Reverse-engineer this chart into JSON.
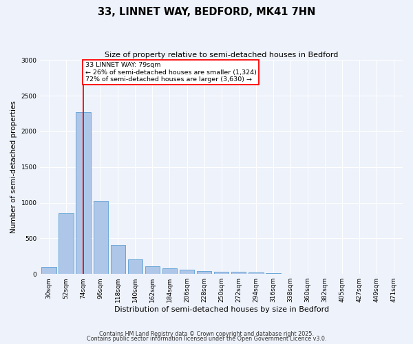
{
  "title": "33, LINNET WAY, BEDFORD, MK41 7HN",
  "subtitle": "Size of property relative to semi-detached houses in Bedford",
  "xlabel": "Distribution of semi-detached houses by size in Bedford",
  "ylabel": "Number of semi-detached properties",
  "bar_labels": [
    "30sqm",
    "52sqm",
    "74sqm",
    "96sqm",
    "118sqm",
    "140sqm",
    "162sqm",
    "184sqm",
    "206sqm",
    "228sqm",
    "250sqm",
    "272sqm",
    "294sqm",
    "316sqm",
    "338sqm",
    "360sqm",
    "382sqm",
    "405sqm",
    "427sqm",
    "449sqm",
    "471sqm"
  ],
  "bar_values": [
    100,
    850,
    2270,
    1020,
    410,
    200,
    110,
    75,
    60,
    45,
    35,
    30,
    20,
    10,
    5,
    5,
    5,
    0,
    0,
    0,
    0
  ],
  "bar_color": "#aec6e8",
  "bar_edge_color": "#5a9fd4",
  "red_line_x": 2.0,
  "annotation_line1": "33 LINNET WAY: 79sqm",
  "annotation_line2": "← 26% of semi-detached houses are smaller (1,324)",
  "annotation_line3": "72% of semi-detached houses are larger (3,630) →",
  "ylim_max": 3000,
  "bg_color": "#eef2fa",
  "grid_color": "#ffffff",
  "footer1": "Contains HM Land Registry data © Crown copyright and database right 2025.",
  "footer2": "Contains public sector information licensed under the Open Government Licence v3.0."
}
